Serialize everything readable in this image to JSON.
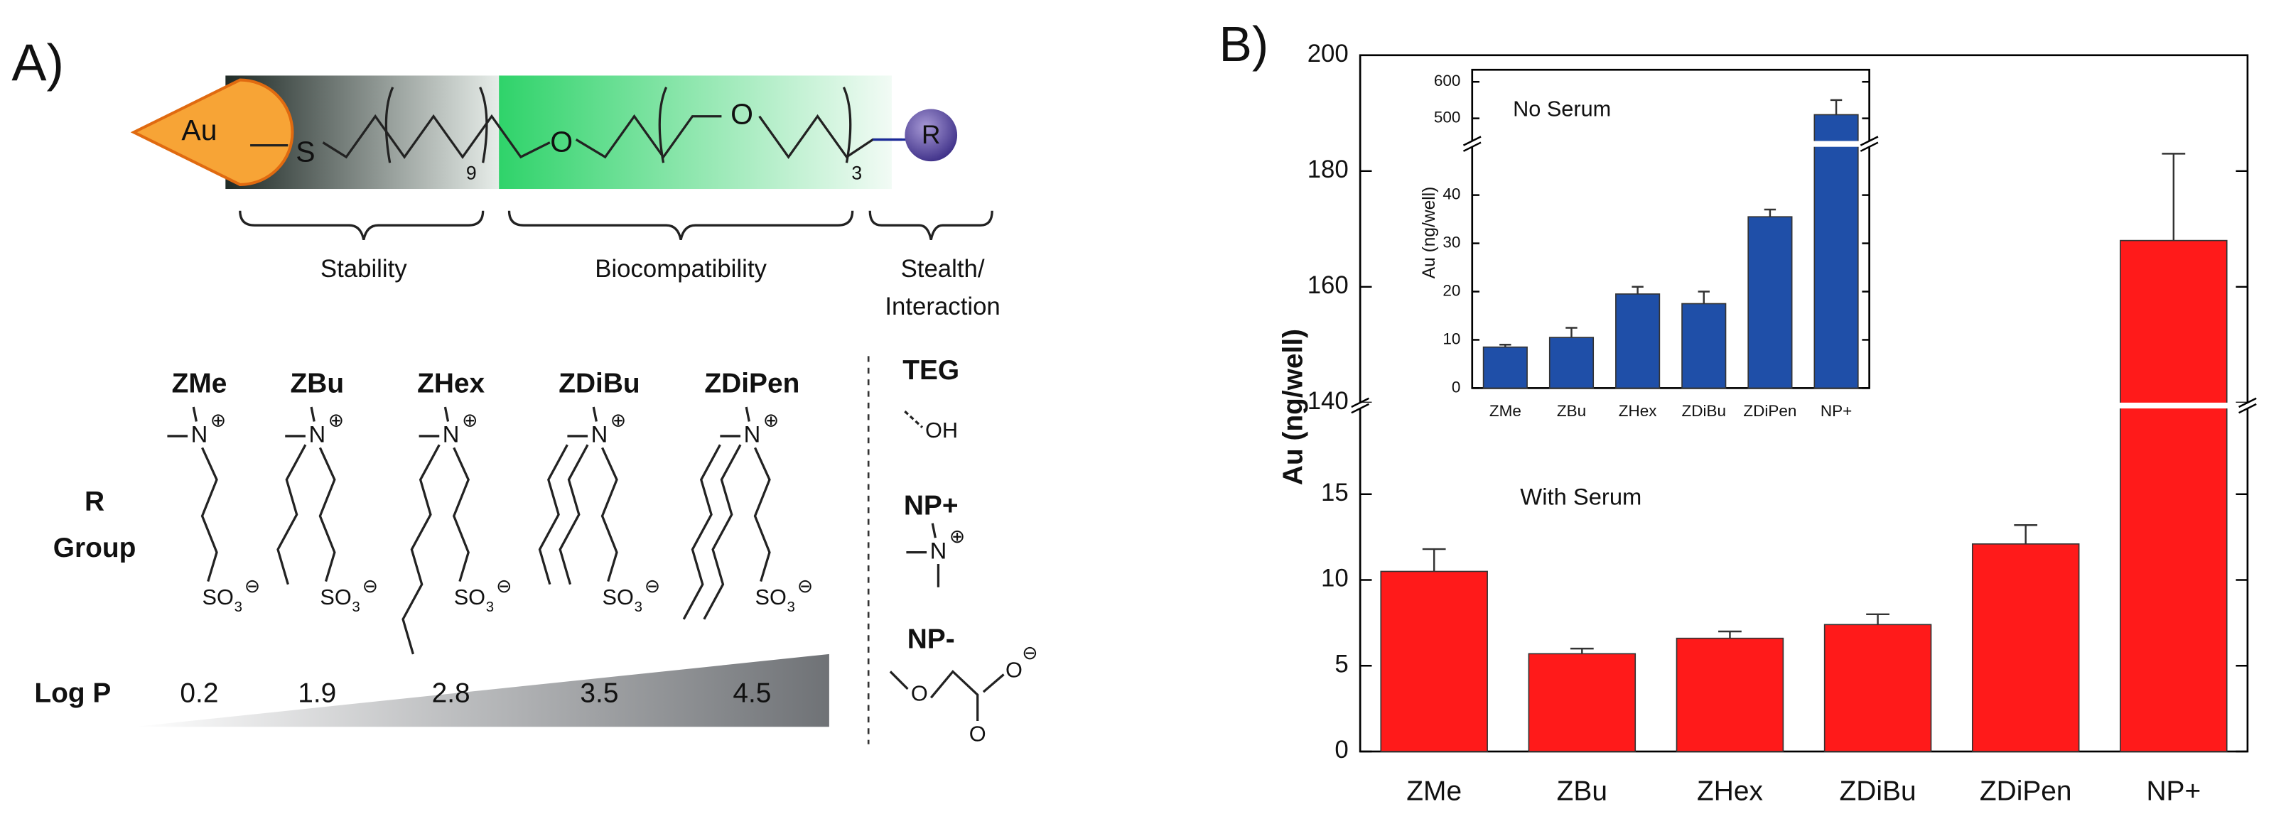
{
  "panel_a": {
    "panel_label": "A)",
    "core": "Au",
    "sulfur": "S",
    "repeat_alkyl": "9",
    "oxygen": "O",
    "repeat_eg": "3",
    "r_group": "R",
    "regions": [
      "Stability",
      "Biocompatibility",
      "Stealth/",
      "Interaction"
    ],
    "columns": [
      "ZMe",
      "ZBu",
      "ZHex",
      "ZDiBu",
      "ZDiPen"
    ],
    "others": [
      "TEG",
      "NP+",
      "NP-"
    ],
    "row_label": [
      "R",
      "Group"
    ],
    "logp_label": "Log P",
    "logp": [
      0.2,
      1.9,
      2.8,
      3.5,
      4.5
    ],
    "chem": {
      "n": "N",
      "plus": "⊕",
      "so": "SO",
      "sub": "3",
      "minus": "⊖",
      "oh": "OH"
    }
  },
  "chart_data": [
    {
      "type": "bar",
      "panel_label": "B)",
      "ylabel": "Au (ng/well)",
      "annotation": "With Serum",
      "categories": [
        "ZMe",
        "ZBu",
        "ZHex",
        "ZDiBu",
        "ZDiPen",
        "NP+"
      ],
      "values": [
        10.5,
        5.7,
        6.6,
        7.4,
        12.1,
        168
      ],
      "errors": [
        1.3,
        0.3,
        0.4,
        0.6,
        1.1,
        15
      ],
      "color": "#ff1a1a",
      "y_segments": [
        {
          "ylim": [
            0,
            20
          ],
          "yticks": [
            0,
            5,
            10,
            15
          ]
        },
        {
          "ylim": [
            140,
            200
          ],
          "yticks": [
            140,
            160,
            180,
            200
          ]
        }
      ]
    },
    {
      "type": "bar",
      "ylabel": "Au (ng/well)",
      "annotation": "No Serum",
      "categories": [
        "ZMe",
        "ZBu",
        "ZHex",
        "ZDiBu",
        "ZDiPen",
        "NP+"
      ],
      "values": [
        8.5,
        10.5,
        19.5,
        17.5,
        35.5,
        510
      ],
      "errors": [
        0.5,
        2,
        1.5,
        2.5,
        1.5,
        40
      ],
      "color": "#1f4fa8",
      "y_segments": [
        {
          "ylim": [
            0,
            50
          ],
          "yticks": [
            0,
            10,
            20,
            30,
            40
          ]
        },
        {
          "ylim": [
            438,
            633
          ],
          "yticks": [
            500,
            600
          ]
        }
      ]
    }
  ]
}
